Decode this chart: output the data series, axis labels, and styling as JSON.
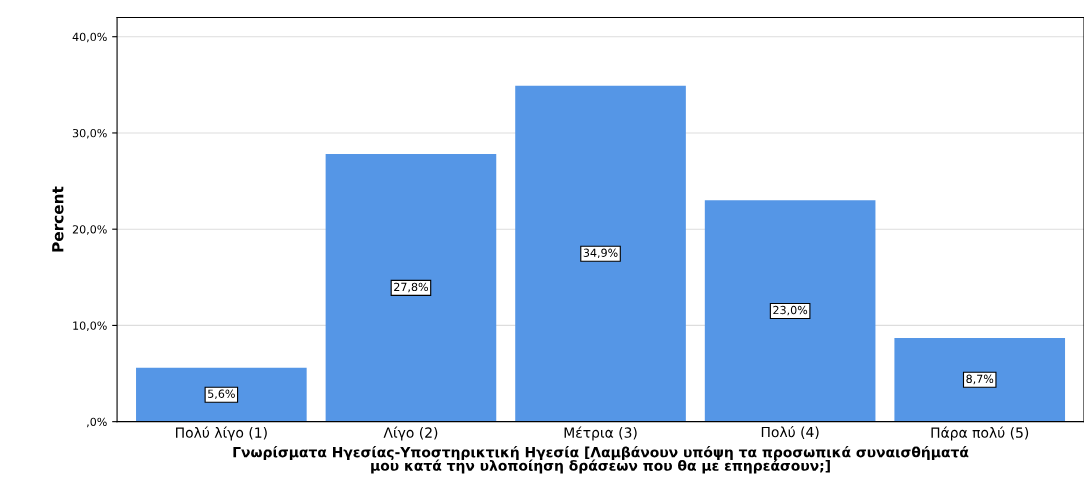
{
  "chart_data": {
    "type": "bar",
    "ylabel": "Percent",
    "xlabel": "Γνωρίσματα Ηγεσίας-Υποστηρικτική Ηγεσία [Λαμβάνουν υπόψη τα προσωπικά συναισθήματά\nμου κατά την υλοποίηση δράσεων που θα με επηρεάσουν;]",
    "categories": [
      "Πολύ λίγο (1)",
      "Λίγο (2)",
      "Μέτρια (3)",
      "Πολύ (4)",
      "Πάρα πολύ (5)"
    ],
    "values": [
      5.6,
      27.8,
      34.9,
      23.0,
      8.7
    ],
    "value_labels": [
      "5,6%",
      "27,8%",
      "34,9%",
      "23,0%",
      "8,7%"
    ],
    "color": "#5596e6",
    "ylim": [
      0,
      42
    ],
    "yticks": [
      {
        "value": 0,
        "label": ",0%"
      },
      {
        "value": 10,
        "label": "10,0%"
      },
      {
        "value": 20,
        "label": "20,0%"
      },
      {
        "value": 30,
        "label": "30,0%"
      },
      {
        "value": 40,
        "label": "40,0%"
      }
    ],
    "grid": "y",
    "legend": false
  }
}
